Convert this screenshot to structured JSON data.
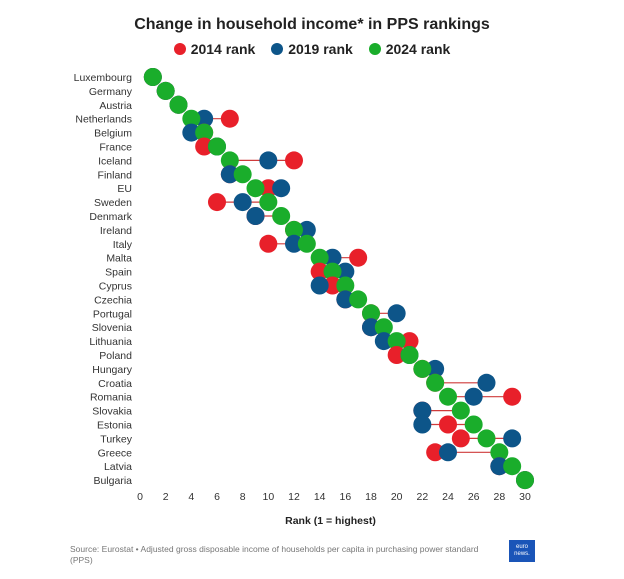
{
  "chart_data": {
    "type": "dumbbell",
    "title": "Change in household income* in PPS rankings",
    "xlabel": "Rank (1 = highest)",
    "ylabel": "",
    "xlim": [
      0,
      30
    ],
    "x_ticks": [
      0,
      2,
      4,
      6,
      8,
      10,
      12,
      14,
      16,
      18,
      20,
      22,
      24,
      26,
      28,
      30
    ],
    "grid": false,
    "legend_position": "top",
    "categories": [
      "Luxembourg",
      "Germany",
      "Austria",
      "Netherlands",
      "Belgium",
      "France",
      "Iceland",
      "Finland",
      "EU",
      "Sweden",
      "Denmark",
      "Ireland",
      "Italy",
      "Malta",
      "Spain",
      "Cyprus",
      "Czechia",
      "Portugal",
      "Slovenia",
      "Lithuania",
      "Poland",
      "Hungary",
      "Croatia",
      "Romania",
      "Slovakia",
      "Estonia",
      "Turkey",
      "Greece",
      "Latvia",
      "Bulgaria"
    ],
    "series": [
      {
        "name": "2014 rank",
        "color": "#e8202a",
        "values": [
          1,
          2,
          3,
          7,
          5,
          5,
          12,
          7,
          10,
          6,
          9,
          12,
          10,
          17,
          14,
          15,
          16,
          18,
          18,
          21,
          20,
          22,
          23,
          29,
          22,
          24,
          25,
          23,
          28,
          30
        ]
      },
      {
        "name": "2019 rank",
        "color": "#0d5589",
        "values": [
          1,
          2,
          3,
          5,
          4,
          6,
          10,
          7,
          11,
          8,
          9,
          13,
          12,
          15,
          16,
          14,
          16,
          20,
          18,
          19,
          21,
          23,
          27,
          26,
          22,
          22,
          29,
          24,
          28,
          30
        ]
      },
      {
        "name": "2024 rank",
        "color": "#1aad2b",
        "values": [
          1,
          2,
          3,
          4,
          5,
          6,
          7,
          8,
          9,
          10,
          11,
          12,
          13,
          14,
          15,
          16,
          17,
          18,
          19,
          20,
          21,
          22,
          23,
          24,
          25,
          26,
          27,
          28,
          29,
          30
        ]
      }
    ]
  },
  "source_note": "Source: Eurostat • Adjusted gross disposable income of households per capita in purchasing power standard (PPS)",
  "logo_text": "euro news."
}
